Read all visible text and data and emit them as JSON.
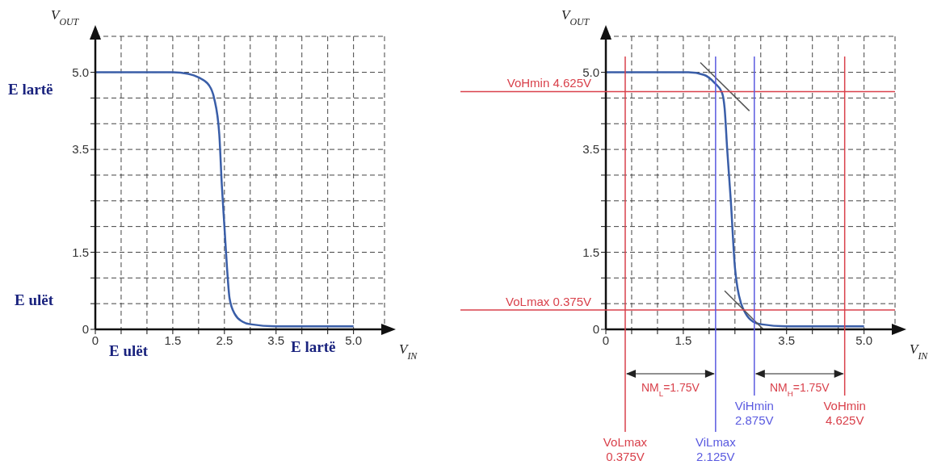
{
  "chart_data": [
    {
      "type": "line",
      "xlabel": "V$_{IN}$",
      "ylabel": "V$_{OUT}$",
      "xlim": [
        0,
        5.6
      ],
      "ylim": [
        0,
        5.7
      ],
      "xticks": [
        0,
        {
          "value": 0.5,
          "label": null
        },
        {
          "value": 1,
          "label": null
        },
        1.5,
        {
          "value": 2,
          "label": null
        },
        2.5,
        {
          "value": 3,
          "label": null
        },
        3.5,
        {
          "value": 4,
          "label": null
        },
        {
          "value": 4.5,
          "label": null
        },
        {
          "value": 5,
          "label": "5.0"
        }
      ],
      "yticks": [
        0,
        {
          "value": 0.5,
          "label": null
        },
        {
          "value": 1,
          "label": null
        },
        1.5,
        {
          "value": 2,
          "label": null
        },
        {
          "value": 2.5,
          "label": null
        },
        {
          "value": 3,
          "label": null
        },
        3.5,
        {
          "value": 4,
          "label": null
        },
        {
          "value": 4.5,
          "label": null
        },
        {
          "value": 5,
          "label": "5.0"
        }
      ],
      "grid": true,
      "line_style": "solid",
      "series": [
        {
          "color": "#3a5ea8",
          "x": [
            0,
            1.5,
            1.8,
            2.0,
            2.2,
            2.3,
            2.4,
            2.45,
            2.5,
            2.55,
            2.6,
            2.7,
            2.85,
            3.0,
            3.5,
            5.0
          ],
          "values": [
            5,
            5,
            4.97,
            4.9,
            4.75,
            4.5,
            3.8,
            2.8,
            2.0,
            1.2,
            0.6,
            0.3,
            0.15,
            0.1,
            0.06,
            0.06
          ]
        }
      ],
      "annotations": [
        "E lartë",
        "E ulët",
        "E ulët",
        "E lartë"
      ]
    },
    {
      "type": "line",
      "xlabel": "V$_{IN}$",
      "ylabel": "V$_{OUT}$",
      "xlim": [
        0,
        5.6
      ],
      "ylim": [
        0,
        5.7
      ],
      "xticks": [
        0,
        {
          "value": 0.5,
          "label": null
        },
        {
          "value": 1,
          "label": null
        },
        1.5,
        {
          "value": 2,
          "label": null
        },
        {
          "value": 2.5,
          "label": null
        },
        {
          "value": 3,
          "label": null
        },
        3.5,
        {
          "value": 4,
          "label": null
        },
        {
          "value": 4.5,
          "label": null
        },
        {
          "value": 5,
          "label": "5.0"
        }
      ],
      "yticks": [
        0,
        {
          "value": 0.5,
          "label": null
        },
        {
          "value": 1,
          "label": null
        },
        1.5,
        {
          "value": 2,
          "label": null
        },
        {
          "value": 2.5,
          "label": null
        },
        {
          "value": 3,
          "label": null
        },
        3.5,
        {
          "value": 4,
          "label": null
        },
        {
          "value": 4.5,
          "label": null
        },
        {
          "value": 5,
          "label": "5.0"
        }
      ],
      "grid": true,
      "line_style": "solid",
      "series": [
        {
          "color": "#3a5ea8",
          "x": [
            0,
            1.6,
            1.9,
            2.1,
            2.25,
            2.3,
            2.35,
            2.42,
            2.5,
            2.55,
            2.62,
            2.7,
            2.85,
            3.0,
            3.5,
            5.0
          ],
          "values": [
            5,
            5,
            4.95,
            4.8,
            4.6,
            4.3,
            3.5,
            2.5,
            1.2,
            0.8,
            0.5,
            0.32,
            0.15,
            0.1,
            0.06,
            0.06
          ]
        },
        {
          "color": "#555555",
          "x": [
            1.83,
            2.78
          ],
          "values": [
            5.19,
            4.25
          ]
        },
        {
          "color": "#555555",
          "x": [
            2.3,
            3.05
          ],
          "values": [
            0.75,
            0
          ]
        }
      ],
      "ref_lines": [
        {
          "axis": "y",
          "value": 4.625,
          "label": "VoHmin 4.625V",
          "color": "#d9414b"
        },
        {
          "axis": "y",
          "value": 0.375,
          "label": "VoLmax 0.375V",
          "color": "#d9414b"
        },
        {
          "axis": "x",
          "value": 0.375,
          "label": "VoLmax 0.375V",
          "color": "#d9414b"
        },
        {
          "axis": "x",
          "value": 2.125,
          "label": "ViLmax 2.125V",
          "color": "#5a5ae0"
        },
        {
          "axis": "x",
          "value": 2.875,
          "label": "ViHmin 2.875V",
          "color": "#5a5ae0"
        },
        {
          "axis": "x",
          "value": 4.625,
          "label": "VoHmin 4.625V",
          "color": "#d9414b"
        }
      ],
      "annotations": [
        "NM$_{L}$=1.75V",
        "NM$_{H}$=1.75V"
      ]
    }
  ]
}
